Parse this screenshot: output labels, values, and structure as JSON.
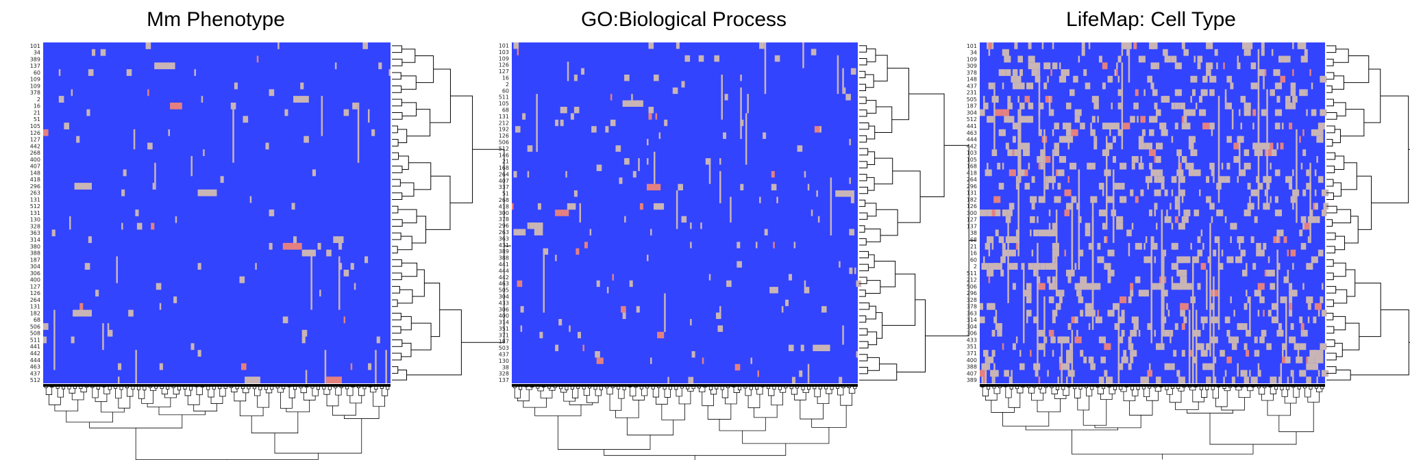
{
  "chart_data": [
    {
      "type": "heatmap",
      "title": "Mm Phenotype",
      "colors": {
        "background": "#3344ff",
        "hit": "#c9b5b5",
        "strong": "#e58080"
      },
      "row_labels": [
        "101",
        "34",
        "389",
        "137",
        "60",
        "109",
        "109",
        "378",
        "2",
        "16",
        "21",
        "51",
        "105",
        "126",
        "127",
        "442",
        "268",
        "400",
        "407",
        "148",
        "418",
        "296",
        "263",
        "131",
        "512",
        "131",
        "130",
        "328",
        "363",
        "314",
        "380",
        "388",
        "187",
        "304",
        "306",
        "400",
        "127",
        "126",
        "264",
        "131",
        "182",
        "68",
        "506",
        "508",
        "511",
        "441",
        "442",
        "444",
        "463",
        "437",
        "512"
      ],
      "col_dendrogram_leaves": 120,
      "row_dendrogram": true
    },
    {
      "type": "heatmap",
      "title": "GO:Biological Process",
      "colors": {
        "background": "#3344ff",
        "hit": "#c9b5b5",
        "strong": "#e58080"
      },
      "row_labels": [
        "101",
        "103",
        "109",
        "126",
        "127",
        "16",
        "2",
        "60",
        "511",
        "105",
        "68",
        "131",
        "212",
        "192",
        "126",
        "506",
        "512",
        "146",
        "21",
        "168",
        "264",
        "407",
        "337",
        "51",
        "268",
        "418",
        "300",
        "378",
        "296",
        "263",
        "363",
        "431",
        "389",
        "388",
        "441",
        "444",
        "442",
        "463",
        "505",
        "304",
        "433",
        "306",
        "400",
        "314",
        "351",
        "371",
        "187",
        "503",
        "437",
        "130",
        "38",
        "328",
        "137"
      ],
      "col_dendrogram_leaves": 120,
      "row_dendrogram": true
    },
    {
      "type": "heatmap",
      "title": "LifeMap: Cell Type",
      "colors": {
        "background": "#3344ff",
        "hit": "#c9b5b5",
        "strong": "#e58080"
      },
      "row_labels": [
        "101",
        "34",
        "109",
        "309",
        "378",
        "148",
        "437",
        "231",
        "505",
        "187",
        "304",
        "512",
        "441",
        "463",
        "444",
        "442",
        "103",
        "105",
        "168",
        "418",
        "264",
        "296",
        "131",
        "182",
        "126",
        "300",
        "127",
        "137",
        "38",
        "68",
        "21",
        "16",
        "60",
        "2",
        "511",
        "212",
        "506",
        "296",
        "328",
        "378",
        "363",
        "314",
        "304",
        "306",
        "433",
        "351",
        "371",
        "400",
        "388",
        "407",
        "389"
      ],
      "col_dendrogram_leaves": 120,
      "row_dendrogram": true
    }
  ]
}
